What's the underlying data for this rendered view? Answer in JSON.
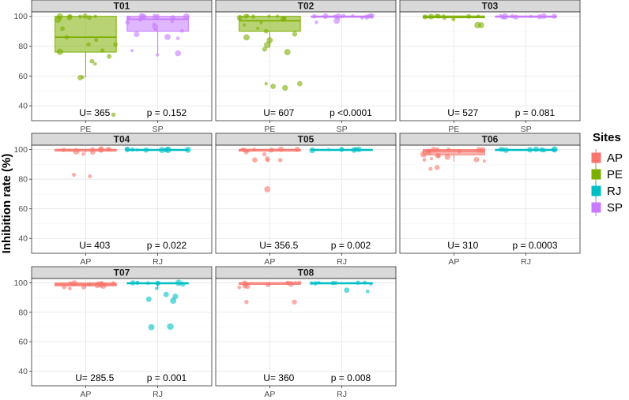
{
  "chart_data": {
    "type": "boxplot",
    "ylabel": "Inhibition rate (%)",
    "ylim": [
      30,
      103
    ],
    "yticks": [
      40,
      60,
      80,
      100
    ],
    "legend": {
      "title": "Sites",
      "position": "right",
      "items": [
        {
          "label": "AP",
          "color": "#F8766D"
        },
        {
          "label": "PE",
          "color": "#7CAE00"
        },
        {
          "label": "RJ",
          "color": "#00BFC4"
        },
        {
          "label": "SP",
          "color": "#C77CFF"
        }
      ]
    },
    "panels": [
      {
        "title": "T01",
        "u_label": "U= 365",
        "p_label": "p = 0.152",
        "groups": [
          {
            "site": "PE",
            "box": {
              "q1": 76,
              "median": 86,
              "q3": 100,
              "whisker_low": 59,
              "whisker_high": 100
            },
            "points": [
              100,
              100,
              100,
              100,
              100,
              99,
              99,
              98,
              92,
              86,
              84,
              81,
              81,
              77,
              76,
              73,
              70,
              68,
              59,
              59,
              34
            ]
          },
          {
            "site": "SP",
            "box": {
              "q1": 90,
              "median": 98,
              "q3": 100,
              "whisker_low": 74,
              "whisker_high": 100
            },
            "points": [
              100,
              100,
              100,
              100,
              100,
              99,
              99,
              98,
              97,
              96,
              95,
              93,
              91,
              90,
              88,
              86,
              85,
              77,
              75,
              74
            ]
          }
        ]
      },
      {
        "title": "T02",
        "u_label": "U= 607",
        "p_label": "p <0.0001",
        "groups": [
          {
            "site": "PE",
            "box": {
              "q1": 90,
              "median": 97,
              "q3": 100,
              "whisker_low": 79,
              "whisker_high": 100
            },
            "points": [
              100,
              100,
              100,
              100,
              100,
              99,
              99,
              98,
              96,
              94,
              92,
              90,
              88,
              86,
              84,
              81,
              78,
              76,
              55,
              55,
              53,
              52
            ]
          },
          {
            "site": "SP",
            "box": {
              "q1": 99.5,
              "median": 100,
              "q3": 100,
              "whisker_low": 99,
              "whisker_high": 100
            },
            "points": [
              100,
              100,
              100,
              100,
              100,
              100,
              100,
              100,
              99.5,
              99,
              97,
              96
            ]
          }
        ]
      },
      {
        "title": "T03",
        "u_label": "U= 527",
        "p_label": "p = 0.081",
        "groups": [
          {
            "site": "PE",
            "box": {
              "q1": 99,
              "median": 100,
              "q3": 100,
              "whisker_low": 98,
              "whisker_high": 100
            },
            "points": [
              100,
              100,
              100,
              100,
              100,
              100,
              99.5,
              99,
              98,
              94,
              94
            ]
          },
          {
            "site": "SP",
            "box": {
              "q1": 99.5,
              "median": 100,
              "q3": 100,
              "whisker_low": 99.5,
              "whisker_high": 100
            },
            "points": [
              100,
              100,
              100,
              100,
              100,
              100,
              100,
              99.5,
              99.5
            ]
          }
        ]
      },
      {
        "title": "T04",
        "u_label": "U= 403",
        "p_label": "p = 0.022",
        "groups": [
          {
            "site": "AP",
            "box": {
              "q1": 99,
              "median": 100,
              "q3": 100,
              "whisker_low": 98,
              "whisker_high": 100
            },
            "points": [
              100,
              100,
              100,
              100,
              100,
              100,
              99.5,
              99,
              98,
              97,
              83,
              82
            ]
          },
          {
            "site": "RJ",
            "box": {
              "q1": 99.5,
              "median": 100,
              "q3": 100,
              "whisker_low": 99.5,
              "whisker_high": 100
            },
            "points": [
              100,
              100,
              100,
              100,
              100,
              100,
              100,
              99.5,
              99.5,
              99.5
            ]
          }
        ]
      },
      {
        "title": "T05",
        "u_label": "U= 356.5",
        "p_label": "p = 0.002",
        "groups": [
          {
            "site": "AP",
            "box": {
              "q1": 99,
              "median": 100,
              "q3": 100,
              "whisker_low": 98,
              "whisker_high": 100
            },
            "points": [
              100,
              100,
              100,
              100,
              100,
              99.5,
              99,
              98,
              97,
              94,
              93,
              93,
              93,
              73
            ]
          },
          {
            "site": "RJ",
            "box": {
              "q1": 99.5,
              "median": 100,
              "q3": 100,
              "whisker_low": 99.5,
              "whisker_high": 100
            },
            "points": [
              100,
              100,
              100,
              100,
              100,
              100,
              100,
              99.5,
              99.5
            ]
          }
        ]
      },
      {
        "title": "T06",
        "u_label": "U= 310",
        "p_label": "p = 0.0003",
        "groups": [
          {
            "site": "AP",
            "box": {
              "q1": 96.5,
              "median": 99,
              "q3": 100,
              "whisker_low": 92,
              "whisker_high": 100
            },
            "points": [
              100,
              100,
              100,
              100,
              100,
              99,
              99,
              98,
              97,
              96,
              96,
              95,
              94,
              93,
              93,
              92,
              88,
              87
            ]
          },
          {
            "site": "RJ",
            "box": {
              "q1": 99.5,
              "median": 100,
              "q3": 100,
              "whisker_low": 99.5,
              "whisker_high": 100
            },
            "points": [
              100,
              100,
              100,
              100,
              100,
              100,
              100,
              99.5,
              99.5
            ]
          }
        ]
      },
      {
        "title": "T07",
        "u_label": "U= 285.5",
        "p_label": "p = 0.001",
        "groups": [
          {
            "site": "AP",
            "box": {
              "q1": 98,
              "median": 99,
              "q3": 100,
              "whisker_low": 97,
              "whisker_high": 100
            },
            "points": [
              100,
              100,
              100,
              100,
              99.5,
              99,
              99,
              98,
              98,
              97,
              97,
              96
            ]
          },
          {
            "site": "RJ",
            "box": {
              "q1": 99.5,
              "median": 100,
              "q3": 100,
              "whisker_low": 96,
              "whisker_high": 100
            },
            "points": [
              100,
              100,
              100,
              100,
              100,
              100,
              99.5,
              99,
              96,
              92,
              91,
              89,
              88,
              70,
              70
            ]
          }
        ]
      },
      {
        "title": "T08",
        "u_label": "U= 360",
        "p_label": "p = 0.008",
        "groups": [
          {
            "site": "AP",
            "box": {
              "q1": 99,
              "median": 100,
              "q3": 100,
              "whisker_low": 98,
              "whisker_high": 100
            },
            "points": [
              100,
              100,
              100,
              100,
              100,
              99.5,
              99,
              98,
              98,
              97,
              87,
              87
            ]
          },
          {
            "site": "RJ",
            "box": {
              "q1": 99.5,
              "median": 100,
              "q3": 100,
              "whisker_low": 99.5,
              "whisker_high": 100
            },
            "points": [
              100,
              100,
              100,
              100,
              100,
              100,
              99.5,
              99.5,
              95,
              94
            ]
          }
        ]
      }
    ]
  }
}
